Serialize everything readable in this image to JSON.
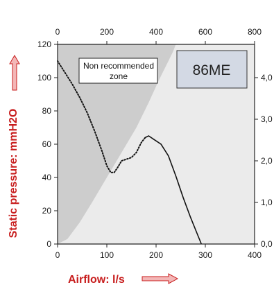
{
  "chart_data": {
    "type": "line",
    "model_label": "86ME",
    "annotation": "Non recommended zone",
    "xlabel": "Airflow: l/s",
    "ylabel": "Static pressure: mmH2O",
    "x_range": [
      0,
      400
    ],
    "x_ticks": [
      "0",
      "100",
      "200",
      "300",
      "400"
    ],
    "y_range": [
      0,
      120
    ],
    "y_ticks": [
      "0",
      "20",
      "40",
      "60",
      "80",
      "100",
      "120"
    ],
    "top_axis_range": [
      0,
      800
    ],
    "top_ticks": [
      "0",
      "200",
      "400",
      "600",
      "800"
    ],
    "right_axis_range": [
      0,
      4.8
    ],
    "right_ticks": [
      "0,0",
      "1,0",
      "2,0",
      "3,0",
      "4,0"
    ],
    "grid": false,
    "colors": {
      "nonrecommended_fill": "#cdcdcd",
      "plot_background": "#ebebeb",
      "label_box_fill": "#d3d9e4",
      "axis_title_color": "#c81e1e",
      "curve_color": "#111111"
    },
    "nonrecommended_boundary": [
      {
        "x": 0,
        "y": 0
      },
      {
        "x": 20,
        "y": 3
      },
      {
        "x": 45,
        "y": 13
      },
      {
        "x": 70,
        "y": 25
      },
      {
        "x": 100,
        "y": 40
      },
      {
        "x": 130,
        "y": 55
      },
      {
        "x": 160,
        "y": 70
      },
      {
        "x": 185,
        "y": 85
      },
      {
        "x": 205,
        "y": 98
      },
      {
        "x": 225,
        "y": 110
      },
      {
        "x": 235,
        "y": 116
      },
      {
        "x": 240,
        "y": 120
      }
    ],
    "series": [
      {
        "style": "dotted",
        "points": [
          {
            "x": 0,
            "y": 110
          },
          {
            "x": 15,
            "y": 103
          },
          {
            "x": 30,
            "y": 96
          },
          {
            "x": 45,
            "y": 88
          },
          {
            "x": 60,
            "y": 79
          },
          {
            "x": 75,
            "y": 68
          },
          {
            "x": 90,
            "y": 56
          },
          {
            "x": 100,
            "y": 47
          },
          {
            "x": 108,
            "y": 43
          },
          {
            "x": 115,
            "y": 43
          },
          {
            "x": 122,
            "y": 46
          },
          {
            "x": 130,
            "y": 50
          },
          {
            "x": 140,
            "y": 51
          },
          {
            "x": 150,
            "y": 52
          },
          {
            "x": 160,
            "y": 55
          },
          {
            "x": 170,
            "y": 61
          },
          {
            "x": 178,
            "y": 64
          }
        ]
      },
      {
        "style": "solid",
        "points": [
          {
            "x": 178,
            "y": 64
          },
          {
            "x": 185,
            "y": 65
          },
          {
            "x": 195,
            "y": 63
          },
          {
            "x": 210,
            "y": 60
          },
          {
            "x": 225,
            "y": 53
          },
          {
            "x": 240,
            "y": 41
          },
          {
            "x": 255,
            "y": 28
          },
          {
            "x": 270,
            "y": 16
          },
          {
            "x": 285,
            "y": 5
          },
          {
            "x": 292,
            "y": 0
          }
        ]
      }
    ]
  }
}
